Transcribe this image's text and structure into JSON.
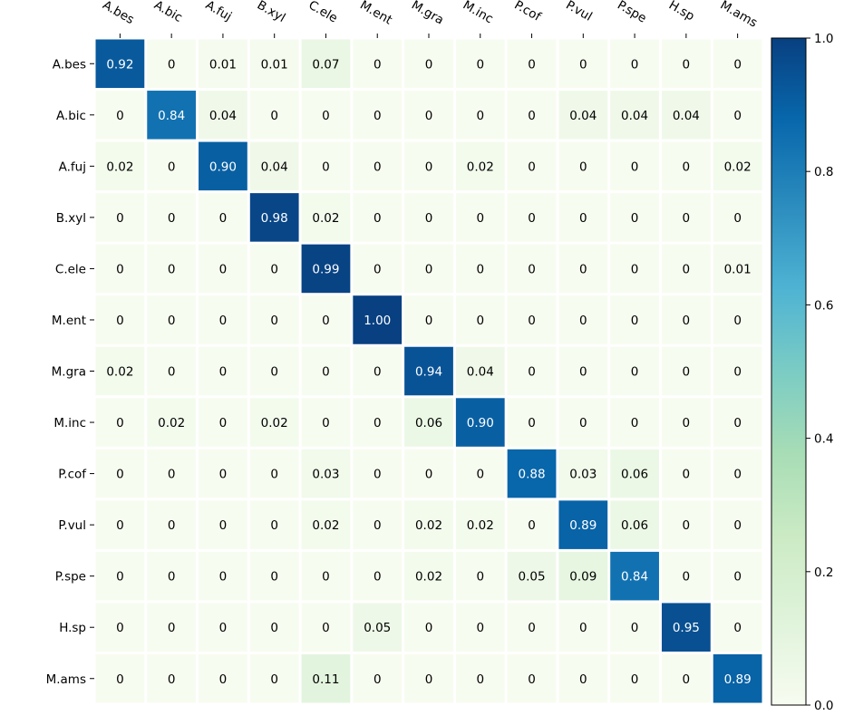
{
  "chart_data": {
    "type": "heatmap",
    "title": "",
    "xlabel": "",
    "ylabel": "",
    "x_categories": [
      "A.bes",
      "A.bic",
      "A.fuj",
      "B.xyl",
      "C.ele",
      "M.ent",
      "M.gra",
      "M.inc",
      "P.cof",
      "P.vul",
      "P.spe",
      "H.sp",
      "M.ams"
    ],
    "y_categories": [
      "A.bes",
      "A.bic",
      "A.fuj",
      "B.xyl",
      "C.ele",
      "M.ent",
      "M.gra",
      "M.inc",
      "P.cof",
      "P.vul",
      "P.spe",
      "H.sp",
      "M.ams"
    ],
    "x_tick_position": "top",
    "x_tick_rotation": "rotated clockwise",
    "cell_labels": [
      [
        "0.92",
        "0",
        "0.01",
        "0.01",
        "0.07",
        "0",
        "0",
        "0",
        "0",
        "0",
        "0",
        "0",
        "0"
      ],
      [
        "0",
        "0.84",
        "0.04",
        "0",
        "0",
        "0",
        "0",
        "0",
        "0",
        "0.04",
        "0.04",
        "0.04",
        "0"
      ],
      [
        "0.02",
        "0",
        "0.90",
        "0.04",
        "0",
        "0",
        "0",
        "0.02",
        "0",
        "0",
        "0",
        "0",
        "0.02"
      ],
      [
        "0",
        "0",
        "0",
        "0.98",
        "0.02",
        "0",
        "0",
        "0",
        "0",
        "0",
        "0",
        "0",
        "0"
      ],
      [
        "0",
        "0",
        "0",
        "0",
        "0.99",
        "0",
        "0",
        "0",
        "0",
        "0",
        "0",
        "0",
        "0.01"
      ],
      [
        "0",
        "0",
        "0",
        "0",
        "0",
        "1.00",
        "0",
        "0",
        "0",
        "0",
        "0",
        "0",
        "0"
      ],
      [
        "0.02",
        "0",
        "0",
        "0",
        "0",
        "0",
        "0.94",
        "0.04",
        "0",
        "0",
        "0",
        "0",
        "0"
      ],
      [
        "0",
        "0.02",
        "0",
        "0.02",
        "0",
        "0",
        "0.06",
        "0.90",
        "0",
        "0",
        "0",
        "0",
        "0"
      ],
      [
        "0",
        "0",
        "0",
        "0",
        "0.03",
        "0",
        "0",
        "0",
        "0.88",
        "0.03",
        "0.06",
        "0",
        "0"
      ],
      [
        "0",
        "0",
        "0",
        "0",
        "0.02",
        "0",
        "0.02",
        "0.02",
        "0",
        "0.89",
        "0.06",
        "0",
        "0"
      ],
      [
        "0",
        "0",
        "0",
        "0",
        "0",
        "0",
        "0.02",
        "0",
        "0.05",
        "0.09",
        "0.84",
        "0",
        "0"
      ],
      [
        "0",
        "0",
        "0",
        "0",
        "0",
        "0.05",
        "0",
        "0",
        "0",
        "0",
        "0",
        "0.95",
        "0"
      ],
      [
        "0",
        "0",
        "0",
        "0",
        "0.11",
        "0",
        "0",
        "0",
        "0",
        "0",
        "0",
        "0",
        "0.89"
      ]
    ],
    "colorbar": {
      "range": [
        0.0,
        1.0
      ],
      "tick_labels": [
        "0.0",
        "0.2",
        "0.4",
        "0.6",
        "0.8",
        "1.0"
      ],
      "colormap": "GnBu",
      "colormap_stops": [
        "#f7fcf0",
        "#e0f3db",
        "#ccebc5",
        "#a8ddb5",
        "#7bccc4",
        "#4eb3d3",
        "#2b8cbe",
        "#0868ac",
        "#084081"
      ]
    },
    "cell_text_colors": {
      "light": "#ffffff",
      "dark": "#000000"
    },
    "threshold_for_light_text": 0.5,
    "grid": false,
    "legend": "colorbar-right"
  }
}
